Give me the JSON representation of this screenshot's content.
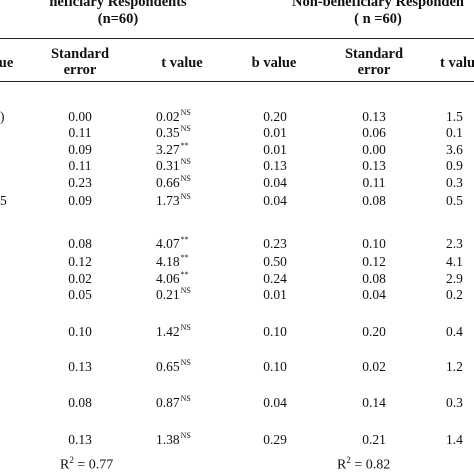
{
  "groups": [
    {
      "title": "neficiary Respondents",
      "subtitle": "(n=60)"
    },
    {
      "title": "Non-beneficiary Responden",
      "subtitle": "( n =60)"
    }
  ],
  "columns": [
    {
      "line1": "ue",
      "line2": ""
    },
    {
      "line1": "Standard",
      "line2": "error"
    },
    {
      "line1": "t value",
      "line2": ""
    },
    {
      "line1": "b value",
      "line2": ""
    },
    {
      "line1": "Standard",
      "line2": "error"
    },
    {
      "line1": "t valu",
      "line2": ""
    }
  ],
  "rows": [
    {
      "b": ")",
      "se": "0.00",
      "t": "0.02",
      "tsig": "NS",
      "b2": "0.20",
      "se2": "0.13",
      "t2": "1.5"
    },
    {
      "b": "",
      "se": "0.11",
      "t": "0.35",
      "tsig": "NS",
      "b2": "0.01",
      "se2": "0.06",
      "t2": "0.1"
    },
    {
      "b": "",
      "se": "0.09",
      "t": "3.27",
      "tsig": "**",
      "b2": "0.01",
      "se2": "0.00",
      "t2": "3.6"
    },
    {
      "b": "",
      "se": "0.11",
      "t": "0.31",
      "tsig": "NS",
      "b2": "0.13",
      "se2": "0.13",
      "t2": "0.9"
    },
    {
      "b": "",
      "se": "0.23",
      "t": "0.66",
      "tsig": "NS",
      "b2": "0.04",
      "se2": "0.11",
      "t2": "0.3"
    },
    {
      "b": "5",
      "se": "0.09",
      "t": "1.73",
      "tsig": "NS",
      "b2": "0.04",
      "se2": "0.08",
      "t2": "0.5"
    },
    {
      "b": "",
      "se": "0.08",
      "t": "4.07",
      "tsig": "**",
      "b2": "0.23",
      "se2": "0.10",
      "t2": "2.3"
    },
    {
      "b": "",
      "se": "0.12",
      "t": "4.18",
      "tsig": "**",
      "b2": "0.50",
      "se2": "0.12",
      "t2": "4.1"
    },
    {
      "b": "",
      "se": "0.02",
      "t": "4.06",
      "tsig": "**",
      "b2": "0.24",
      "se2": "0.08",
      "t2": "2.9"
    },
    {
      "b": "",
      "se": "0.05",
      "t": "0.21",
      "tsig": "NS",
      "b2": "0.01",
      "se2": "0.04",
      "t2": "0.2"
    },
    {
      "b": "",
      "se": "0.10",
      "t": "1.42",
      "tsig": "NS",
      "b2": "0.10",
      "se2": "0.20",
      "t2": "0.4"
    },
    {
      "b": "",
      "se": "0.13",
      "t": "0.65",
      "tsig": "NS",
      "b2": "0.10",
      "se2": "0.02",
      "t2": "1.2"
    },
    {
      "b": "",
      "se": "0.08",
      "t": "0.87",
      "tsig": "NS",
      "b2": "0.04",
      "se2": "0.14",
      "t2": "0.3"
    },
    {
      "b": "",
      "se": "0.13",
      "t": "1.38",
      "tsig": "NS",
      "b2": "0.29",
      "se2": "0.21",
      "t2": "1.4"
    }
  ],
  "r2": [
    {
      "label": "R",
      "sup": "2",
      "value": " = 0.77"
    },
    {
      "label": "R",
      "sup": "2",
      "value": " = 0.82"
    }
  ]
}
